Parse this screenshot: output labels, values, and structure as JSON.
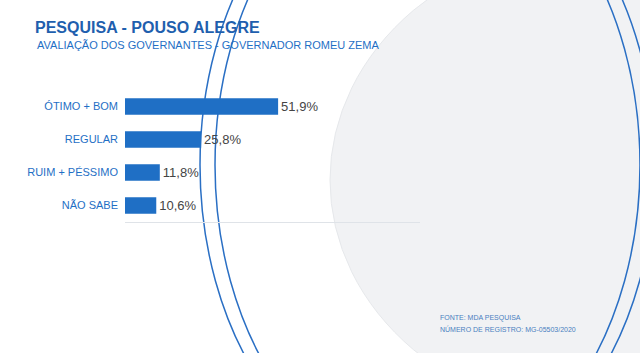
{
  "chart_data": {
    "type": "bar",
    "orientation": "horizontal",
    "title": "PESQUISA - POUSO ALEGRE",
    "subtitle": "AVALIAÇÃO DOS GOVERNANTES - GOVERNADOR ROMEU ZEMA",
    "categories": [
      "ÓTIMO + BOM",
      "REGULAR",
      "RUIM + PÉSSIMO",
      "NÃO SABE"
    ],
    "values": [
      51.9,
      25.8,
      11.8,
      10.6
    ],
    "value_labels": [
      "51,9%",
      "25,8%",
      "11,8%",
      "10,6%"
    ],
    "data_labels": true,
    "color": "#1f6fc5",
    "xlim": [
      0,
      100
    ],
    "xticks": [],
    "tick_labels": "y",
    "grid": false,
    "annotations": [
      "FONTE: MDA PESQUISA",
      "NÚMERO DE REGISTRO: MG-05503/2020"
    ]
  }
}
